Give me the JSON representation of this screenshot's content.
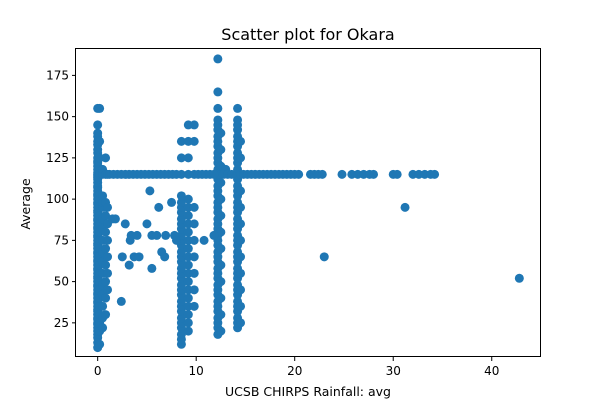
{
  "chart_data": {
    "type": "scatter",
    "title": "Scatter plot for Okara",
    "xlabel": "UCSB CHIRPS Rainfall: avg",
    "ylabel": "Average",
    "xlim": [
      -2.2,
      45.0
    ],
    "ylim": [
      4.3,
      191.0
    ],
    "xticks": [
      0,
      10,
      20,
      30,
      40
    ],
    "yticks": [
      25,
      50,
      75,
      100,
      125,
      150,
      175
    ],
    "grid": false,
    "legend": "none",
    "marker_color": "#1f77b4",
    "point_groups": [
      {
        "x": 0.0,
        "ys": [
          10,
          13,
          16,
          18,
          20,
          22,
          24,
          25,
          27,
          28,
          30,
          32,
          33,
          35,
          37,
          38,
          40,
          42,
          43,
          45,
          47,
          48,
          50,
          52,
          53,
          55,
          57,
          58,
          60,
          62,
          63,
          65,
          67,
          68,
          70,
          72,
          73,
          75,
          77,
          78,
          80,
          82,
          83,
          85,
          87,
          88,
          90,
          92,
          93,
          95,
          97,
          98,
          100,
          102,
          103,
          105,
          107,
          108,
          110,
          112,
          113,
          114,
          115,
          116,
          118,
          120,
          122,
          123,
          125,
          128,
          130,
          133,
          135,
          138,
          140,
          145,
          155
        ]
      },
      {
        "x": 0.2,
        "ys": [
          12,
          20,
          25,
          30,
          35,
          40,
          45,
          50,
          55,
          60,
          65,
          70,
          75,
          80,
          85,
          90,
          95,
          100,
          115,
          125,
          135,
          155
        ]
      },
      {
        "x": 0.5,
        "ys": [
          22,
          28,
          35,
          42,
          48,
          55,
          62,
          68,
          75,
          82,
          88,
          95,
          98,
          102,
          115,
          118
        ]
      },
      {
        "x": 0.8,
        "ys": [
          30,
          40,
          50,
          60,
          70,
          80,
          90,
          98,
          115,
          125
        ]
      },
      {
        "x": 1.0,
        "ys": [
          45,
          55,
          65,
          75,
          85,
          95,
          115
        ]
      },
      {
        "x": 8.5,
        "ys": [
          12,
          15,
          18,
          22,
          25,
          28,
          32,
          35,
          38,
          42,
          45,
          48,
          52,
          55,
          58,
          62,
          65,
          68,
          72,
          75,
          78,
          82,
          85,
          88,
          92,
          95,
          98,
          102,
          115,
          125,
          135
        ]
      },
      {
        "x": 9.2,
        "ys": [
          20,
          25,
          30,
          35,
          40,
          45,
          50,
          55,
          60,
          65,
          70,
          75,
          80,
          85,
          90,
          95,
          100,
          115,
          125,
          135,
          145
        ]
      },
      {
        "x": 9.8,
        "ys": [
          35,
          45,
          55,
          65,
          75,
          85,
          95,
          115,
          135,
          145
        ]
      },
      {
        "x": 12.2,
        "ys": [
          18,
          22,
          25,
          28,
          32,
          35,
          38,
          42,
          45,
          48,
          52,
          55,
          58,
          62,
          65,
          68,
          72,
          75,
          78,
          82,
          85,
          88,
          92,
          95,
          98,
          102,
          105,
          108,
          112,
          115,
          118,
          122,
          125,
          128,
          132,
          135,
          138,
          142,
          145,
          148,
          155,
          165,
          185
        ]
      },
      {
        "x": 12.5,
        "ys": [
          20,
          30,
          40,
          50,
          60,
          70,
          80,
          90,
          100,
          110,
          115,
          120,
          130,
          140
        ]
      },
      {
        "x": 14.2,
        "ys": [
          22,
          25,
          28,
          32,
          35,
          38,
          42,
          45,
          48,
          52,
          55,
          58,
          62,
          65,
          68,
          72,
          75,
          78,
          82,
          85,
          88,
          92,
          95,
          98,
          102,
          105,
          108,
          112,
          115,
          118,
          122,
          125,
          128,
          132,
          135,
          138,
          142,
          145,
          148,
          155
        ]
      },
      {
        "x": 14.5,
        "ys": [
          25,
          35,
          45,
          55,
          65,
          75,
          85,
          95,
          105,
          115,
          125,
          135
        ]
      }
    ],
    "points": [
      {
        "x": 1.5,
        "y": 88
      },
      {
        "x": 1.8,
        "y": 88
      },
      {
        "x": 2.5,
        "y": 65
      },
      {
        "x": 2.4,
        "y": 38
      },
      {
        "x": 2.8,
        "y": 85
      },
      {
        "x": 3.2,
        "y": 60
      },
      {
        "x": 3.3,
        "y": 75
      },
      {
        "x": 3.4,
        "y": 78
      },
      {
        "x": 3.7,
        "y": 65
      },
      {
        "x": 4.0,
        "y": 78
      },
      {
        "x": 4.2,
        "y": 65
      },
      {
        "x": 5.0,
        "y": 85
      },
      {
        "x": 5.3,
        "y": 105
      },
      {
        "x": 5.5,
        "y": 78
      },
      {
        "x": 5.5,
        "y": 58
      },
      {
        "x": 6.0,
        "y": 78
      },
      {
        "x": 6.2,
        "y": 95
      },
      {
        "x": 6.5,
        "y": 68
      },
      {
        "x": 6.8,
        "y": 65
      },
      {
        "x": 6.9,
        "y": 78
      },
      {
        "x": 7.5,
        "y": 98
      },
      {
        "x": 7.8,
        "y": 78
      },
      {
        "x": 8.0,
        "y": 75
      },
      {
        "x": 10.8,
        "y": 75
      },
      {
        "x": 11.8,
        "y": 78
      },
      {
        "x": 13.0,
        "y": 118
      },
      {
        "x": 23.0,
        "y": 65
      },
      {
        "x": 31.2,
        "y": 95
      },
      {
        "x": 42.8,
        "y": 52
      },
      {
        "x": 1.2,
        "y": 115
      },
      {
        "x": 1.6,
        "y": 115
      },
      {
        "x": 2.0,
        "y": 115
      },
      {
        "x": 2.4,
        "y": 115
      },
      {
        "x": 2.8,
        "y": 115
      },
      {
        "x": 3.2,
        "y": 115
      },
      {
        "x": 3.6,
        "y": 115
      },
      {
        "x": 4.0,
        "y": 115
      },
      {
        "x": 4.4,
        "y": 115
      },
      {
        "x": 4.8,
        "y": 115
      },
      {
        "x": 5.2,
        "y": 115
      },
      {
        "x": 5.6,
        "y": 115
      },
      {
        "x": 6.0,
        "y": 115
      },
      {
        "x": 6.4,
        "y": 115
      },
      {
        "x": 6.8,
        "y": 115
      },
      {
        "x": 7.2,
        "y": 115
      },
      {
        "x": 7.6,
        "y": 115
      },
      {
        "x": 8.0,
        "y": 115
      },
      {
        "x": 10.2,
        "y": 115
      },
      {
        "x": 10.6,
        "y": 115
      },
      {
        "x": 11.0,
        "y": 115
      },
      {
        "x": 11.4,
        "y": 115
      },
      {
        "x": 11.8,
        "y": 115
      },
      {
        "x": 12.8,
        "y": 115
      },
      {
        "x": 13.2,
        "y": 115
      },
      {
        "x": 13.6,
        "y": 115
      },
      {
        "x": 14.8,
        "y": 115
      },
      {
        "x": 15.2,
        "y": 115
      },
      {
        "x": 15.6,
        "y": 115
      },
      {
        "x": 16.0,
        "y": 115
      },
      {
        "x": 16.4,
        "y": 115
      },
      {
        "x": 16.8,
        "y": 115
      },
      {
        "x": 17.2,
        "y": 115
      },
      {
        "x": 17.6,
        "y": 115
      },
      {
        "x": 18.0,
        "y": 115
      },
      {
        "x": 18.4,
        "y": 115
      },
      {
        "x": 18.8,
        "y": 115
      },
      {
        "x": 19.2,
        "y": 115
      },
      {
        "x": 19.6,
        "y": 115
      },
      {
        "x": 20.0,
        "y": 115
      },
      {
        "x": 20.4,
        "y": 115
      },
      {
        "x": 21.6,
        "y": 115
      },
      {
        "x": 22.0,
        "y": 115
      },
      {
        "x": 22.4,
        "y": 115
      },
      {
        "x": 22.8,
        "y": 115
      },
      {
        "x": 24.8,
        "y": 115
      },
      {
        "x": 25.8,
        "y": 115
      },
      {
        "x": 26.4,
        "y": 115
      },
      {
        "x": 27.0,
        "y": 115
      },
      {
        "x": 27.6,
        "y": 115
      },
      {
        "x": 28.0,
        "y": 115
      },
      {
        "x": 30.0,
        "y": 115
      },
      {
        "x": 30.4,
        "y": 115
      },
      {
        "x": 32.0,
        "y": 115
      },
      {
        "x": 32.6,
        "y": 115
      },
      {
        "x": 33.2,
        "y": 115
      },
      {
        "x": 33.8,
        "y": 115
      },
      {
        "x": 34.2,
        "y": 115
      }
    ]
  }
}
